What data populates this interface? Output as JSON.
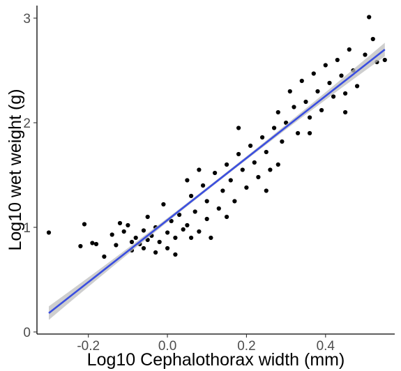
{
  "chart_data": {
    "type": "scatter",
    "title": "",
    "xlabel": "Log10 Cephalothorax width (mm)",
    "ylabel": "Log10 wet weight (g)",
    "xlim": [
      -0.33,
      0.575
    ],
    "ylim": [
      -0.02,
      3.12
    ],
    "x_ticks": [
      -0.2,
      0.0,
      0.2,
      0.4
    ],
    "x_tick_labels": [
      "-0.2",
      "0.0",
      "0.2",
      "0.4"
    ],
    "y_ticks": [
      0,
      1,
      2,
      3
    ],
    "y_tick_labels": [
      "0",
      "1",
      "2",
      "3"
    ],
    "grid": false,
    "legend": "none",
    "point_color": "#000000",
    "fit_line": {
      "method": "linear",
      "color": "#3a4ee0",
      "ci_band_color": "#bdbdbd",
      "x": [
        -0.3,
        0.55
      ],
      "y": [
        0.18,
        2.7
      ]
    },
    "series": [
      {
        "points": [
          [
            -0.3,
            0.95
          ],
          [
            -0.21,
            1.03
          ],
          [
            -0.22,
            0.82
          ],
          [
            -0.19,
            0.85
          ],
          [
            -0.18,
            0.84
          ],
          [
            -0.16,
            0.72
          ],
          [
            -0.14,
            0.93
          ],
          [
            -0.13,
            0.83
          ],
          [
            -0.12,
            1.04
          ],
          [
            -0.11,
            0.96
          ],
          [
            -0.1,
            1.02
          ],
          [
            -0.09,
            0.86
          ],
          [
            -0.09,
            0.78
          ],
          [
            -0.08,
            0.9
          ],
          [
            -0.07,
            0.84
          ],
          [
            -0.06,
            0.97
          ],
          [
            -0.06,
            0.8
          ],
          [
            -0.05,
            1.1
          ],
          [
            -0.05,
            0.88
          ],
          [
            -0.04,
            0.92
          ],
          [
            -0.03,
            0.76
          ],
          [
            -0.03,
            1.0
          ],
          [
            -0.02,
            0.86
          ],
          [
            -0.01,
            1.22
          ],
          [
            0.0,
            0.95
          ],
          [
            0.0,
            0.8
          ],
          [
            0.01,
            1.06
          ],
          [
            0.02,
            0.9
          ],
          [
            0.02,
            0.74
          ],
          [
            0.03,
            1.12
          ],
          [
            0.04,
            0.98
          ],
          [
            0.05,
            1.02
          ],
          [
            0.06,
            1.3
          ],
          [
            0.06,
            0.9
          ],
          [
            0.07,
            1.15
          ],
          [
            0.08,
            0.96
          ],
          [
            0.09,
            1.4
          ],
          [
            0.1,
            1.08
          ],
          [
            0.1,
            1.25
          ],
          [
            0.11,
            0.9
          ],
          [
            0.12,
            1.52
          ],
          [
            0.13,
            1.18
          ],
          [
            0.14,
            1.35
          ],
          [
            0.15,
            1.6
          ],
          [
            0.16,
            1.45
          ],
          [
            0.17,
            1.25
          ],
          [
            0.18,
            1.7
          ],
          [
            0.19,
            1.55
          ],
          [
            0.2,
            1.38
          ],
          [
            0.21,
            1.78
          ],
          [
            0.22,
            1.62
          ],
          [
            0.23,
            1.48
          ],
          [
            0.24,
            1.86
          ],
          [
            0.25,
            1.72
          ],
          [
            0.26,
            1.55
          ],
          [
            0.27,
            1.95
          ],
          [
            0.28,
            2.1
          ],
          [
            0.29,
            1.82
          ],
          [
            0.3,
            2.0
          ],
          [
            0.31,
            2.3
          ],
          [
            0.32,
            2.15
          ],
          [
            0.33,
            1.9
          ],
          [
            0.34,
            2.4
          ],
          [
            0.35,
            2.2
          ],
          [
            0.36,
            2.05
          ],
          [
            0.37,
            2.47
          ],
          [
            0.38,
            2.3
          ],
          [
            0.39,
            2.12
          ],
          [
            0.4,
            2.55
          ],
          [
            0.41,
            2.38
          ],
          [
            0.42,
            2.25
          ],
          [
            0.43,
            2.6
          ],
          [
            0.44,
            2.45
          ],
          [
            0.45,
            2.28
          ],
          [
            0.46,
            2.7
          ],
          [
            0.47,
            2.5
          ],
          [
            0.48,
            2.35
          ],
          [
            0.5,
            2.65
          ],
          [
            0.51,
            3.01
          ],
          [
            0.52,
            2.8
          ],
          [
            0.53,
            2.58
          ],
          [
            0.55,
            2.6
          ],
          [
            0.45,
            2.1
          ],
          [
            0.36,
            1.9
          ],
          [
            0.28,
            1.6
          ],
          [
            0.18,
            1.95
          ],
          [
            0.08,
            1.55
          ],
          [
            0.15,
            1.1
          ],
          [
            0.25,
            1.35
          ],
          [
            0.05,
            1.45
          ]
        ]
      }
    ]
  }
}
